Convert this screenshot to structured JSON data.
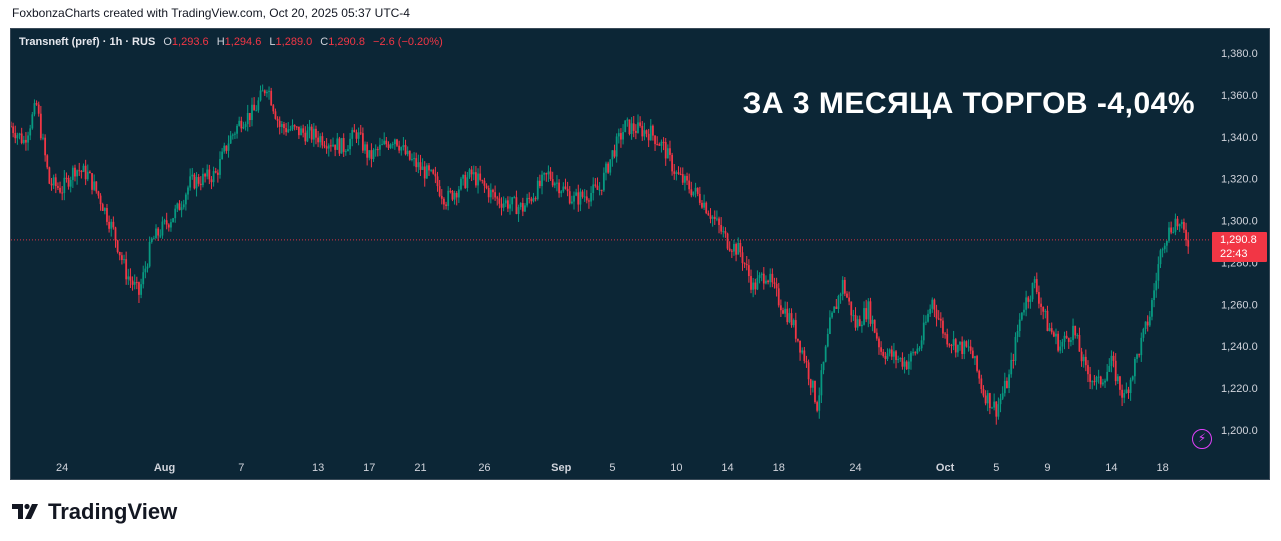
{
  "header": {
    "credit": "FoxbonzaCharts created with TradingView.com, Oct 20, 2025 05:37 UTC-4"
  },
  "legend": {
    "symbol": "Transneft (pref) · 1h · RUS",
    "open_label": "O",
    "open": "1,293.6",
    "high_label": "H",
    "high": "1,294.6",
    "low_label": "L",
    "low": "1,289.0",
    "close_label": "C",
    "close": "1,290.8",
    "change": "−2.6 (−0.20%)"
  },
  "headline": "ЗА 3 МЕСЯЦА ТОРГОВ -4,04%",
  "price_tag": {
    "price": "1,290.8",
    "countdown": "22:43"
  },
  "footer": {
    "brand": "TradingView"
  },
  "icons": {
    "flash": "lightning-icon",
    "brand_logo": "tradingview-logo-icon"
  },
  "colors": {
    "up": "#089981",
    "down": "#f23645",
    "background": "#0c2636",
    "axis_text": "#d1d4dc"
  },
  "chart_data": {
    "type": "candlestick",
    "title": "",
    "ylim": [
      1190,
      1390
    ],
    "y_ticks": [
      1200,
      1220,
      1240,
      1260,
      1280,
      1300,
      1320,
      1340,
      1360,
      1380
    ],
    "y_tick_labels": [
      "1,200.0",
      "1,220.0",
      "1,240.0",
      "1,260.0",
      "1,280.0",
      "1,300.0",
      "1,320.0",
      "1,340.0",
      "1,360.0",
      "1,380.0"
    ],
    "x_ticks": [
      {
        "label": "24",
        "date": "2025-07-24",
        "bold": false
      },
      {
        "label": "Aug",
        "date": "2025-08-01",
        "bold": true
      },
      {
        "label": "7",
        "date": "2025-08-07",
        "bold": false
      },
      {
        "label": "13",
        "date": "2025-08-13",
        "bold": false
      },
      {
        "label": "17",
        "date": "2025-08-17",
        "bold": false
      },
      {
        "label": "21",
        "date": "2025-08-21",
        "bold": false
      },
      {
        "label": "26",
        "date": "2025-08-26",
        "bold": false
      },
      {
        "label": "Sep",
        "date": "2025-09-01",
        "bold": true
      },
      {
        "label": "5",
        "date": "2025-09-05",
        "bold": false
      },
      {
        "label": "10",
        "date": "2025-09-10",
        "bold": false
      },
      {
        "label": "14",
        "date": "2025-09-14",
        "bold": false
      },
      {
        "label": "18",
        "date": "2025-09-18",
        "bold": false
      },
      {
        "label": "24",
        "date": "2025-09-24",
        "bold": false
      },
      {
        "label": "Oct",
        "date": "2025-10-01",
        "bold": true
      },
      {
        "label": "5",
        "date": "2025-10-05",
        "bold": false
      },
      {
        "label": "9",
        "date": "2025-10-09",
        "bold": false
      },
      {
        "label": "14",
        "date": "2025-10-14",
        "bold": false
      },
      {
        "label": "18",
        "date": "2025-10-18",
        "bold": false
      }
    ],
    "last_price": 1290.8,
    "price_path": [
      {
        "date": "2025-07-20",
        "price": 1345
      },
      {
        "date": "2025-07-21",
        "price": 1338
      },
      {
        "date": "2025-07-22",
        "price": 1355
      },
      {
        "date": "2025-07-23",
        "price": 1318
      },
      {
        "date": "2025-07-24",
        "price": 1315
      },
      {
        "date": "2025-07-25",
        "price": 1325
      },
      {
        "date": "2025-07-26",
        "price": 1322
      },
      {
        "date": "2025-07-27",
        "price": 1310
      },
      {
        "date": "2025-07-28",
        "price": 1295
      },
      {
        "date": "2025-07-29",
        "price": 1275
      },
      {
        "date": "2025-07-30",
        "price": 1265
      },
      {
        "date": "2025-07-31",
        "price": 1290
      },
      {
        "date": "2025-08-02",
        "price": 1305
      },
      {
        "date": "2025-08-03",
        "price": 1318
      },
      {
        "date": "2025-08-05",
        "price": 1322
      },
      {
        "date": "2025-08-06",
        "price": 1338
      },
      {
        "date": "2025-08-07",
        "price": 1348
      },
      {
        "date": "2025-08-08",
        "price": 1352
      },
      {
        "date": "2025-08-09",
        "price": 1365
      },
      {
        "date": "2025-08-10",
        "price": 1345
      },
      {
        "date": "2025-08-13",
        "price": 1340
      },
      {
        "date": "2025-08-15",
        "price": 1335
      },
      {
        "date": "2025-08-16",
        "price": 1342
      },
      {
        "date": "2025-08-17",
        "price": 1330
      },
      {
        "date": "2025-08-19",
        "price": 1340
      },
      {
        "date": "2025-08-20",
        "price": 1330
      },
      {
        "date": "2025-08-22",
        "price": 1320
      },
      {
        "date": "2025-08-23",
        "price": 1310
      },
      {
        "date": "2025-08-25",
        "price": 1322
      },
      {
        "date": "2025-08-27",
        "price": 1310
      },
      {
        "date": "2025-08-29",
        "price": 1306
      },
      {
        "date": "2025-08-31",
        "price": 1322
      },
      {
        "date": "2025-09-02",
        "price": 1310
      },
      {
        "date": "2025-09-04",
        "price": 1315
      },
      {
        "date": "2025-09-05",
        "price": 1332
      },
      {
        "date": "2025-09-06",
        "price": 1345
      },
      {
        "date": "2025-09-08",
        "price": 1342
      },
      {
        "date": "2025-09-09",
        "price": 1335
      },
      {
        "date": "2025-09-10",
        "price": 1322
      },
      {
        "date": "2025-09-12",
        "price": 1310
      },
      {
        "date": "2025-09-13",
        "price": 1300
      },
      {
        "date": "2025-09-14",
        "price": 1290
      },
      {
        "date": "2025-09-15",
        "price": 1285
      },
      {
        "date": "2025-09-16",
        "price": 1268
      },
      {
        "date": "2025-09-17",
        "price": 1275
      },
      {
        "date": "2025-09-18",
        "price": 1262
      },
      {
        "date": "2025-09-19",
        "price": 1252
      },
      {
        "date": "2025-09-20",
        "price": 1235
      },
      {
        "date": "2025-09-21",
        "price": 1212
      },
      {
        "date": "2025-09-22",
        "price": 1250
      },
      {
        "date": "2025-09-23",
        "price": 1270
      },
      {
        "date": "2025-09-24",
        "price": 1250
      },
      {
        "date": "2025-09-25",
        "price": 1258
      },
      {
        "date": "2025-09-26",
        "price": 1238
      },
      {
        "date": "2025-09-28",
        "price": 1232
      },
      {
        "date": "2025-09-29",
        "price": 1240
      },
      {
        "date": "2025-09-30",
        "price": 1262
      },
      {
        "date": "2025-10-01",
        "price": 1245
      },
      {
        "date": "2025-10-02",
        "price": 1240
      },
      {
        "date": "2025-10-03",
        "price": 1238
      },
      {
        "date": "2025-10-04",
        "price": 1218
      },
      {
        "date": "2025-10-05",
        "price": 1210
      },
      {
        "date": "2025-10-06",
        "price": 1225
      },
      {
        "date": "2025-10-07",
        "price": 1258
      },
      {
        "date": "2025-10-08",
        "price": 1270
      },
      {
        "date": "2025-10-09",
        "price": 1250
      },
      {
        "date": "2025-10-10",
        "price": 1240
      },
      {
        "date": "2025-10-11",
        "price": 1248
      },
      {
        "date": "2025-10-12",
        "price": 1228
      },
      {
        "date": "2025-10-13",
        "price": 1222
      },
      {
        "date": "2025-10-14",
        "price": 1232
      },
      {
        "date": "2025-10-15",
        "price": 1215
      },
      {
        "date": "2025-10-16",
        "price": 1235
      },
      {
        "date": "2025-10-17",
        "price": 1255
      },
      {
        "date": "2025-10-18",
        "price": 1290
      },
      {
        "date": "2025-10-19",
        "price": 1300
      },
      {
        "date": "2025-10-20",
        "price": 1290.8
      }
    ]
  }
}
